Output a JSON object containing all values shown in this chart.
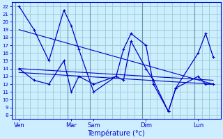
{
  "xlabel": "Température (°c)",
  "bg_color": "#cceeff",
  "line_color": "#0000cc",
  "grid_color": "#99cccc",
  "ylim": [
    7.5,
    22.5
  ],
  "yticks": [
    8,
    9,
    10,
    11,
    12,
    13,
    14,
    15,
    16,
    17,
    18,
    19,
    20,
    21,
    22
  ],
  "xlim": [
    0,
    28
  ],
  "xtick_positions": [
    1,
    8,
    11,
    18,
    25
  ],
  "xtick_labels": [
    "Ven",
    "Mar",
    "Sam",
    "Dim",
    "Lun"
  ],
  "num_cols": 27,
  "series1": {
    "x": [
      1,
      3,
      5,
      7,
      8,
      9,
      11,
      14,
      15,
      16,
      18,
      19,
      21,
      22,
      25,
      26,
      27
    ],
    "y": [
      22,
      19,
      15,
      21.5,
      19.5,
      16.5,
      11,
      13,
      16.5,
      18.5,
      17,
      12,
      8.5,
      11.5,
      16,
      18.5,
      15.5
    ]
  },
  "series2": {
    "x": [
      1,
      3,
      5,
      7,
      8,
      9,
      11,
      14,
      15,
      16,
      18,
      19,
      21,
      22,
      25,
      26,
      27
    ],
    "y": [
      14,
      12.5,
      12,
      15,
      11,
      13,
      12,
      13,
      12.5,
      17.5,
      14,
      12.5,
      8.5,
      11.5,
      13,
      12,
      12
    ]
  },
  "trend1": {
    "x": [
      1,
      27
    ],
    "y": [
      14.0,
      12.5
    ]
  },
  "trend2": {
    "x": [
      1,
      27
    ],
    "y": [
      13.5,
      12.0
    ]
  },
  "trend3": {
    "x": [
      1,
      27
    ],
    "y": [
      19.0,
      12.0
    ]
  }
}
